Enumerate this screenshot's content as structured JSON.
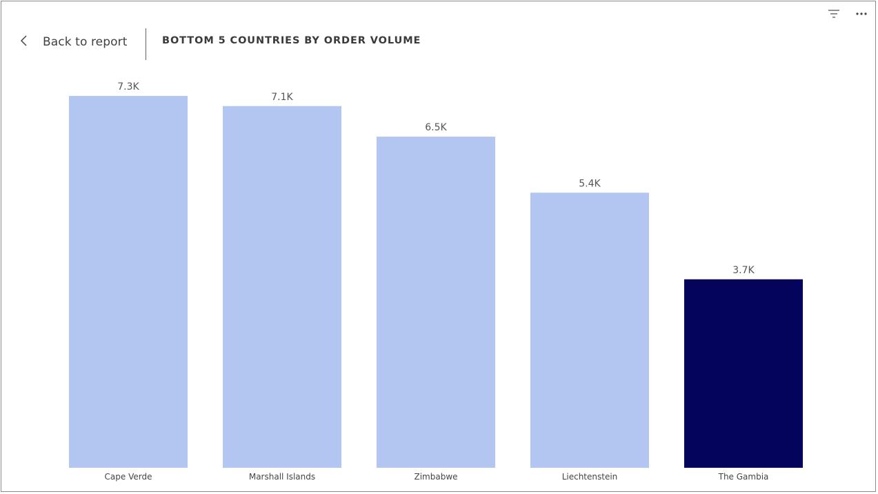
{
  "header": {
    "back_label": "Back to report",
    "title": "BOTTOM 5 COUNTRIES BY ORDER VOLUME"
  },
  "toolbar": {
    "filter_icon": "filter-icon",
    "more_icon": "more-options-icon"
  },
  "chart_data": {
    "type": "bar",
    "categories": [
      "Cape Verde",
      "Marshall Islands",
      "Zimbabwe",
      "Liechtenstein",
      "The Gambia"
    ],
    "values": [
      7.3,
      7.1,
      6.5,
      5.4,
      3.7
    ],
    "value_labels": [
      "7.3K",
      "7.1K",
      "6.5K",
      "5.4K",
      "3.7K"
    ],
    "unit": "thousands",
    "title": "BOTTOM 5 COUNTRIES BY ORDER VOLUME",
    "xlabel": "",
    "ylabel": "",
    "ylim": [
      0,
      7.3
    ],
    "grid": false,
    "legend": "none",
    "colors": {
      "default": "#b2c6f1",
      "highlight": "#04045c"
    },
    "highlight_index": 4
  }
}
